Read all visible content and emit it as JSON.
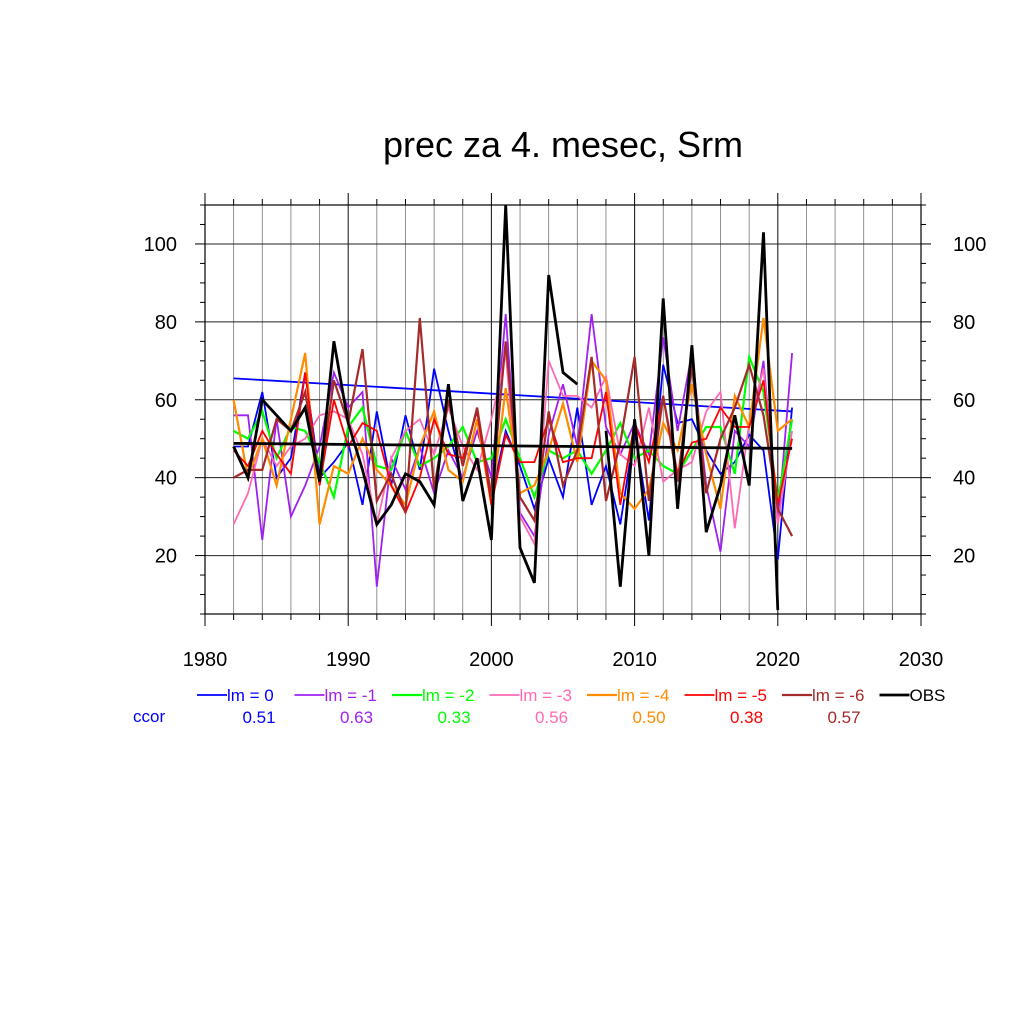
{
  "chart_data": {
    "type": "line",
    "title": "prec za 4. mesec, Srm",
    "xlabel": "",
    "ylabel": "",
    "xlim": [
      1980,
      2030
    ],
    "ylim": [
      5,
      110
    ],
    "x_ticks": [
      1980,
      1990,
      2000,
      2010,
      2020,
      2030
    ],
    "y_ticks": [
      20,
      40,
      60,
      80,
      100
    ],
    "grid": true,
    "ccor_label": "ccor",
    "x": [
      1982,
      1983,
      1984,
      1985,
      1986,
      1987,
      1988,
      1989,
      1990,
      1991,
      1992,
      1993,
      1994,
      1995,
      1996,
      1997,
      1998,
      1999,
      2000,
      2001,
      2002,
      2003,
      2004,
      2005,
      2006,
      2007,
      2008,
      2009,
      2010,
      2011,
      2012,
      2013,
      2014,
      2015,
      2016,
      2017,
      2018,
      2019,
      2020,
      2021
    ],
    "series": [
      {
        "name": "lm = 0",
        "color": "#0000ff",
        "ccor": "0.51",
        "width": 1.8,
        "values": [
          48,
          48,
          62,
          40,
          45,
          67,
          40,
          44,
          49,
          33,
          57,
          38,
          56,
          42,
          68,
          52,
          39,
          55,
          35,
          52,
          43,
          32,
          45,
          35,
          58,
          33,
          43,
          28,
          52,
          29,
          69,
          54,
          55,
          47,
          41,
          44,
          51,
          47,
          19,
          58
        ],
        "trend": [
          65.5,
          57.0
        ]
      },
      {
        "name": "lm = -1",
        "color": "#a020f0",
        "ccor": "0.63",
        "width": 1.8,
        "values": [
          56,
          56,
          24,
          55,
          30,
          38,
          48,
          67,
          58,
          62,
          12,
          45,
          37,
          48,
          36,
          47,
          40,
          52,
          40,
          82,
          31,
          25,
          51,
          64,
          48,
          82,
          53,
          46,
          54,
          46,
          76,
          52,
          72,
          38,
          21,
          52,
          48,
          70,
          28,
          72
        ]
      },
      {
        "name": "lm = -2",
        "color": "#00ff00",
        "ccor": "0.33",
        "width": 2.2,
        "values": [
          52,
          50,
          57,
          45,
          53,
          52,
          44,
          35,
          53,
          58,
          43,
          42,
          52,
          43,
          45,
          48,
          53,
          44,
          45,
          55,
          45,
          35,
          47,
          45,
          47,
          41,
          47,
          54,
          45,
          47,
          43,
          41,
          47,
          53,
          53,
          41,
          71,
          62,
          34,
          55
        ]
      },
      {
        "name": "lm = -3",
        "color": "#ff69b4",
        "ccor": "0.56",
        "width": 1.8,
        "values": [
          28,
          36,
          50,
          43,
          48,
          50,
          56,
          57,
          55,
          46,
          28,
          45,
          52,
          55,
          46,
          58,
          48,
          42,
          55,
          72,
          30,
          23,
          70,
          61,
          61,
          58,
          66,
          46,
          43,
          58,
          39,
          42,
          44,
          57,
          62,
          27,
          54,
          68,
          28,
          52
        ]
      },
      {
        "name": "lm = -4",
        "color": "#ff8c00",
        "ccor": "0.50",
        "width": 2.2,
        "values": [
          60,
          40,
          50,
          38,
          55,
          72,
          28,
          43,
          41,
          50,
          42,
          38,
          33,
          48,
          57,
          42,
          39,
          55,
          33,
          63,
          36,
          38,
          47,
          59,
          44,
          70,
          65,
          36,
          32,
          37,
          54,
          47,
          64,
          46,
          32,
          61,
          53,
          81,
          52,
          55
        ]
      },
      {
        "name": "lm = -5",
        "color": "#ff0000",
        "ccor": "0.38",
        "width": 1.8,
        "values": [
          47,
          43,
          52,
          46,
          41,
          67,
          38,
          60,
          48,
          54,
          52,
          38,
          31,
          40,
          55,
          46,
          45,
          57,
          33,
          51,
          44,
          44,
          55,
          44,
          45,
          45,
          62,
          33,
          54,
          44,
          61,
          41,
          49,
          50,
          58,
          53,
          53,
          65,
          33,
          50
        ]
      },
      {
        "name": "lm = -6",
        "color": "#a52a2a",
        "ccor": "0.57",
        "width": 2.2,
        "values": [
          40,
          42,
          42,
          55,
          52,
          62,
          39,
          65,
          54,
          73,
          34,
          41,
          31,
          81,
          37,
          60,
          43,
          58,
          35,
          75,
          35,
          29,
          57,
          38,
          47,
          71,
          34,
          49,
          71,
          34,
          61,
          39,
          69,
          36,
          50,
          58,
          69,
          56,
          32,
          25
        ]
      },
      {
        "name": "OBS",
        "color": "#000000",
        "ccor": "",
        "width": 2.8,
        "values": [
          48,
          40,
          60,
          56,
          52,
          58,
          39,
          75,
          54,
          42,
          28,
          33,
          41,
          39,
          33,
          64,
          34,
          45,
          24,
          110,
          22,
          13,
          92,
          67,
          64,
          null,
          52,
          12,
          55,
          20,
          86,
          32,
          74,
          26,
          38,
          56,
          38,
          103,
          6,
          null
        ],
        "trend": [
          48.8,
          47.5
        ]
      }
    ]
  }
}
